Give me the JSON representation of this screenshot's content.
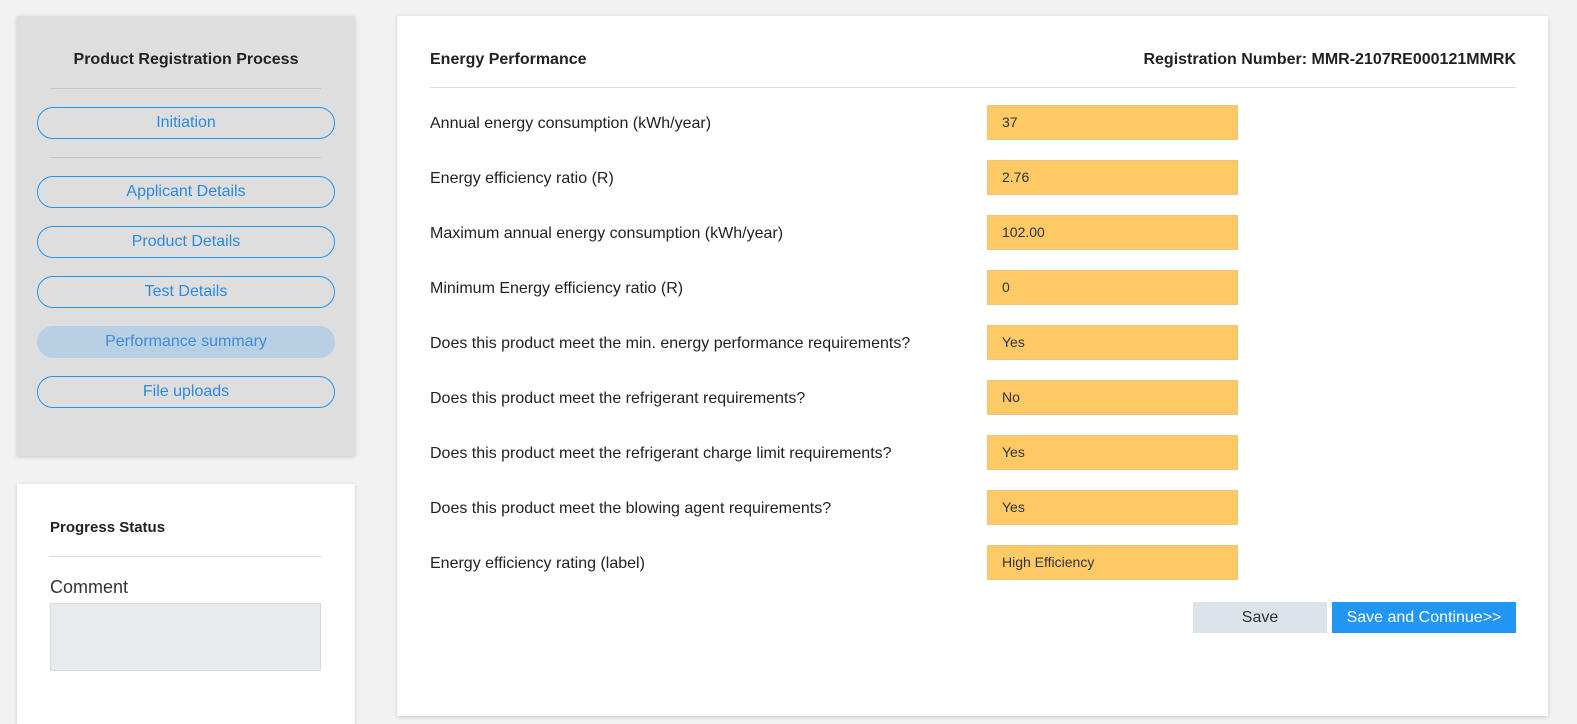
{
  "sidebar": {
    "title": "Product Registration Process",
    "steps": [
      {
        "label": "Initiation"
      },
      {
        "label": "Applicant Details"
      },
      {
        "label": "Product Details"
      },
      {
        "label": "Test Details"
      },
      {
        "label": "Performance summary"
      },
      {
        "label": "File uploads"
      }
    ],
    "active_step": "Performance summary"
  },
  "progress": {
    "title": "Progress Status",
    "comment_label": "Comment",
    "comment_value": ""
  },
  "main": {
    "title": "Energy Performance",
    "registration": "Registration Number: MMR-2107RE000121MMRK",
    "rows": [
      {
        "label": "Annual energy consumption (kWh/year)",
        "value": "37"
      },
      {
        "label": "Energy efficiency ratio (R)",
        "value": "2.76"
      },
      {
        "label": "Maximum annual energy consumption (kWh/year)",
        "value": "102.00"
      },
      {
        "label": "Minimum Energy efficiency ratio (R)",
        "value": "0"
      },
      {
        "label": "Does this product meet the min. energy performance requirements?",
        "value": "Yes"
      },
      {
        "label": "Does this product meet the refrigerant requirements?",
        "value": "No"
      },
      {
        "label": "Does this product meet the refrigerant charge limit requirements?",
        "value": "Yes"
      },
      {
        "label": "Does this product meet the blowing agent requirements?",
        "value": "Yes"
      },
      {
        "label": "Energy efficiency rating (label)",
        "value": "High Efficiency"
      }
    ]
  },
  "actions": {
    "save_label": "Save",
    "continue_label": "Save and Continue>>"
  },
  "colors": {
    "accent": "#2196f3",
    "field_bg": "#ffc966",
    "active_step_bg": "#b9cfe4"
  }
}
